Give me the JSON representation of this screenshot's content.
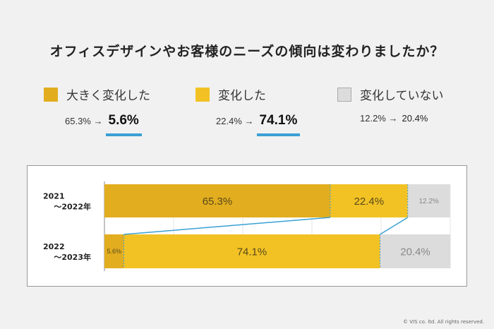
{
  "title": "オフィスデザインやお客様のニーズの傾向は変わりましたか？",
  "legend": [
    {
      "label": "大きく変化した",
      "color": "#e2ad1f",
      "from": "65.3%",
      "arrow": "→",
      "to": "5.6%"
    },
    {
      "label": "変化した",
      "color": "#f2c225",
      "from": "22.4%",
      "arrow": "→",
      "to": "74.1%"
    },
    {
      "label": "変化していない",
      "color": "#dcdcdc",
      "from": "12.2%",
      "arrow": "→",
      "to": "20.4%"
    }
  ],
  "chart_data": {
    "type": "bar",
    "stacked": true,
    "orientation": "horizontal",
    "categories": [
      "2021\n～2022年",
      "2022\n～2023年"
    ],
    "category_lines": [
      [
        "2021",
        "～2022年"
      ],
      [
        "2022",
        "～2023年"
      ]
    ],
    "series": [
      {
        "name": "大きく変化した",
        "values": [
          65.3,
          5.6
        ],
        "labels": [
          "65.3%",
          "5.6%"
        ],
        "color": "#e2ad1f"
      },
      {
        "name": "変化した",
        "values": [
          22.4,
          74.1
        ],
        "labels": [
          "22.4%",
          "74.1%"
        ],
        "color": "#f2c225"
      },
      {
        "name": "変化していない",
        "values": [
          12.2,
          20.4
        ],
        "labels": [
          "12.2%",
          "20.4%"
        ],
        "color": "#dcdcdc"
      }
    ],
    "xlim": [
      0,
      100
    ],
    "grid": true,
    "accent": "#3aa0d4"
  },
  "copyright": "© VIS co. ltd. All rights reserved."
}
